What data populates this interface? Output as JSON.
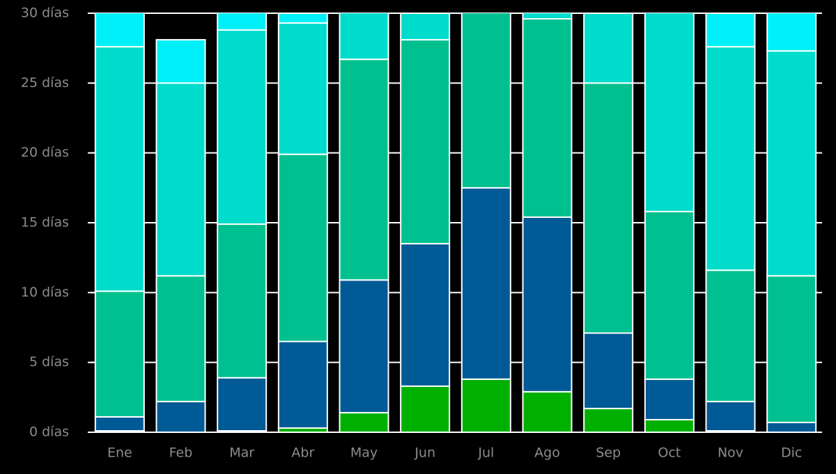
{
  "chart_data": {
    "type": "stacked_bar",
    "categories": [
      "Ene",
      "Feb",
      "Mar",
      "Abr",
      "May",
      "Jun",
      "Jul",
      "Ago",
      "Sep",
      "Oct",
      "Nov",
      "Dic"
    ],
    "series": [
      {
        "color": "#e8d8ff",
        "values": [
          0.1,
          0,
          0.1,
          0,
          0,
          0,
          0,
          0,
          0,
          0,
          0.1,
          0
        ]
      },
      {
        "color": "#00b000",
        "values": [
          0,
          0,
          0,
          0.3,
          1.4,
          3.3,
          3.8,
          2.9,
          1.7,
          0.9,
          0,
          0
        ]
      },
      {
        "color": "#005a96",
        "values": [
          1.0,
          2.2,
          3.8,
          6.2,
          9.5,
          10.2,
          13.7,
          12.5,
          5.4,
          2.9,
          2.1,
          0.7
        ]
      },
      {
        "color": "#00c090",
        "values": [
          9.0,
          9.0,
          11.0,
          13.4,
          15.8,
          14.6,
          13.5,
          14.2,
          17.9,
          12.0,
          9.4,
          10.5
        ]
      },
      {
        "color": "#00dccc",
        "values": [
          17.5,
          13.8,
          13.9,
          9.4,
          4.3,
          1.9,
          0,
          1.4,
          5.0,
          15.2,
          16.0,
          16.1
        ]
      },
      {
        "color": "#00f0fa",
        "values": [
          3.4,
          3.1,
          2.2,
          0.7,
          0,
          0,
          0,
          0,
          0,
          0,
          2.4,
          3.7
        ]
      }
    ],
    "ylim": [
      0,
      30
    ],
    "yticks": [
      {
        "value": 0,
        "label": "0 días"
      },
      {
        "value": 5,
        "label": "5 días"
      },
      {
        "value": 10,
        "label": "10 días"
      },
      {
        "value": 15,
        "label": "15 días"
      },
      {
        "value": 20,
        "label": "20 días"
      },
      {
        "value": 25,
        "label": "25 días"
      },
      {
        "value": 30,
        "label": "30 días"
      }
    ],
    "grid": true
  }
}
